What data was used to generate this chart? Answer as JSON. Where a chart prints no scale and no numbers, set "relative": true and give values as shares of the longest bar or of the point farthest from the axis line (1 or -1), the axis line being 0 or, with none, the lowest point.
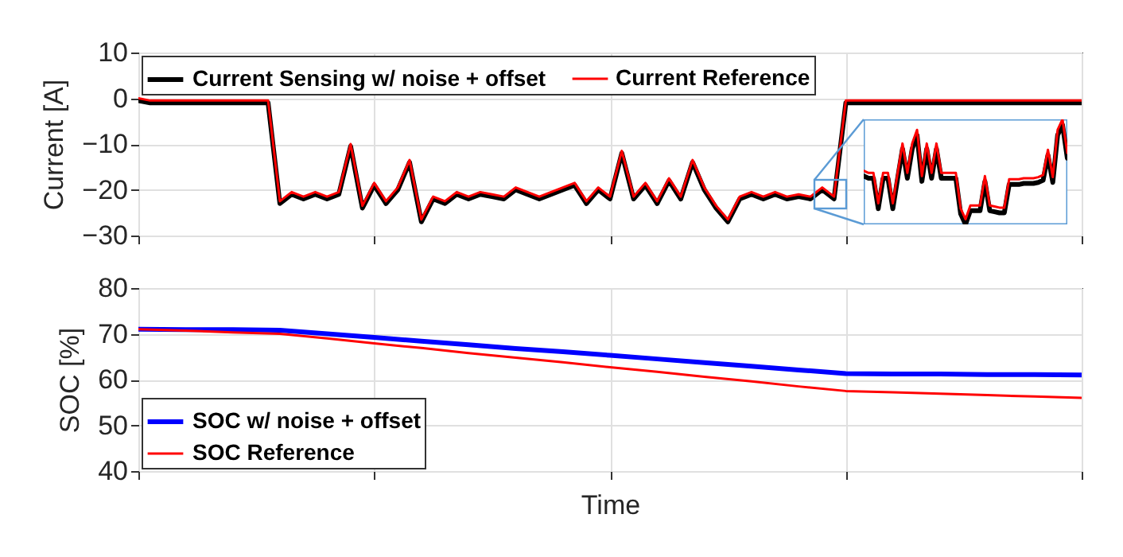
{
  "chart_data": [
    {
      "type": "line",
      "ylabel": "Current [A]",
      "categories": [
        null,
        null,
        null,
        null,
        null,
        null,
        null,
        null,
        null,
        null,
        null,
        null,
        null,
        null,
        null,
        null,
        null,
        null,
        null,
        null,
        null,
        null,
        null,
        null,
        null,
        null,
        null,
        null,
        null,
        null,
        null,
        null,
        null,
        null,
        null,
        null,
        null,
        null,
        null,
        null,
        null,
        null,
        null,
        null,
        null,
        null,
        null,
        null,
        null,
        null,
        null,
        null,
        null,
        null,
        null,
        null,
        null,
        null,
        null,
        null,
        null,
        null,
        null,
        null,
        null,
        null,
        null,
        null,
        null,
        null,
        null,
        null,
        null,
        null,
        null,
        null,
        null,
        null,
        null,
        null,
        null
      ],
      "ylim": [
        -30,
        10
      ],
      "yticks": [
        -30,
        -20,
        -10,
        0,
        10
      ],
      "grid": true,
      "legend": "top left",
      "tick_labels": "y",
      "series": [
        {
          "name": "Current Sensing w/ noise + offset",
          "color": "#000000",
          "values": [
            -0.5,
            -1,
            -1,
            -1,
            -1,
            -1,
            -1,
            -1,
            -1,
            -1,
            -1,
            -1,
            -23,
            -21,
            -22,
            -21,
            -22,
            -21,
            -10.5,
            -24,
            -19,
            -23,
            -20,
            -14,
            -27,
            -22,
            -23,
            -21,
            -22,
            -21,
            -21.5,
            -22,
            -20,
            -21,
            -22,
            -21,
            -20,
            -19,
            -23,
            -20,
            -22,
            -12,
            -22,
            -19,
            -23,
            -18,
            -22,
            -14,
            -20,
            -24,
            -27,
            -22,
            -21,
            -22,
            -21,
            -22,
            -21.5,
            -22,
            -20,
            -22,
            -1,
            -1,
            -1,
            -1,
            -1,
            -1,
            -1,
            -1,
            -1,
            -1,
            -1,
            -1,
            -1,
            -1,
            -1,
            -1,
            -1,
            -1,
            -1,
            -1,
            -1
          ]
        },
        {
          "name": "Current Reference",
          "color": "#ff0000",
          "values": [
            0,
            -0.5,
            -0.5,
            -0.5,
            -0.5,
            -0.5,
            -0.5,
            -0.5,
            -0.5,
            -0.5,
            -0.5,
            -0.5,
            -22.5,
            -20.5,
            -21.5,
            -20.5,
            -21.5,
            -20.5,
            -10,
            -23.5,
            -18.5,
            -22.5,
            -19.5,
            -13.5,
            -26.5,
            -21.5,
            -22.5,
            -20.5,
            -21.5,
            -20.5,
            -21,
            -21.5,
            -19.5,
            -20.5,
            -21.5,
            -20.5,
            -19.5,
            -18.5,
            -22.5,
            -19.5,
            -21.5,
            -11.5,
            -21.5,
            -18.5,
            -22.5,
            -17.5,
            -21.5,
            -13.5,
            -19.5,
            -23.5,
            -26.5,
            -21.5,
            -20.5,
            -21.5,
            -20.5,
            -21.5,
            -21,
            -21.5,
            -19.5,
            -21.5,
            -0.5,
            -0.5,
            -0.5,
            -0.5,
            -0.5,
            -0.5,
            -0.5,
            -0.5,
            -0.5,
            -0.5,
            -0.5,
            -0.5,
            -0.5,
            -0.5,
            -0.5,
            -0.5,
            -0.5,
            -0.5,
            -0.5,
            -0.5,
            -0.5
          ]
        }
      ]
    },
    {
      "type": "line",
      "relative": true,
      "categories": [
        null,
        null,
        null,
        null,
        null,
        null,
        null,
        null,
        null,
        null,
        null,
        null,
        null,
        null,
        null,
        null,
        null,
        null,
        null,
        null,
        null,
        null,
        null,
        null,
        null,
        null,
        null,
        null,
        null,
        null,
        null,
        null,
        null,
        null,
        null,
        null,
        null,
        null,
        null,
        null,
        null,
        null,
        null
      ],
      "series": [
        {
          "color": "#000000",
          "values": [
            0.46,
            0.44,
            0.44,
            0.15,
            0.44,
            0.44,
            0.15,
            0.44,
            0.72,
            0.44,
            0.72,
            0.85,
            0.41,
            0.72,
            0.44,
            0.72,
            0.44,
            0.44,
            0.44,
            0.44,
            0.1,
            0,
            0.13,
            0.13,
            0.13,
            0.41,
            0.13,
            0.12,
            0.11,
            0.11,
            0.38,
            0.38,
            0.38,
            0.39,
            0.39,
            0.39,
            0.4,
            0.42,
            0.66,
            0.4,
            0.85,
            0.95,
            0.63
          ]
        },
        {
          "color": "#ff0000",
          "values": [
            0.51,
            0.49,
            0.49,
            0.2,
            0.49,
            0.49,
            0.2,
            0.49,
            0.77,
            0.49,
            0.77,
            0.9,
            0.46,
            0.77,
            0.49,
            0.77,
            0.49,
            0.49,
            0.49,
            0.49,
            0.15,
            0.05,
            0.18,
            0.18,
            0.18,
            0.46,
            0.18,
            0.17,
            0.16,
            0.16,
            0.43,
            0.43,
            0.43,
            0.44,
            0.44,
            0.44,
            0.45,
            0.47,
            0.71,
            0.45,
            0.9,
            1,
            0.68
          ]
        }
      ]
    },
    {
      "type": "line",
      "xlabel": "Time",
      "ylabel": "SOC [%]",
      "categories": [
        null,
        null,
        null,
        null,
        null,
        null,
        null,
        null,
        null,
        null,
        null,
        null,
        null,
        null,
        null,
        null,
        null,
        null,
        null,
        null,
        null
      ],
      "ylim": [
        40,
        80
      ],
      "yticks": [
        40,
        50,
        60,
        70,
        80
      ],
      "grid": true,
      "legend": "bottom left",
      "tick_labels": "y",
      "series": [
        {
          "name": "SOC w/ noise + offset",
          "color": "#0000ff",
          "values": [
            71,
            70.9,
            70.9,
            70.8,
            70.0,
            69.2,
            68.4,
            67.6,
            66.8,
            66.1,
            65.3,
            64.5,
            63.7,
            62.9,
            62.1,
            61.3,
            61.2,
            61.2,
            61.1,
            61.1,
            61.0
          ]
        },
        {
          "name": "SOC Reference",
          "color": "#ff0000",
          "values": [
            71,
            70.7,
            70.3,
            70.0,
            69.0,
            67.9,
            66.9,
            65.8,
            64.8,
            63.8,
            62.7,
            61.7,
            60.6,
            59.6,
            58.5,
            57.5,
            57.2,
            56.9,
            56.6,
            56.3,
            56.0
          ]
        }
      ]
    }
  ]
}
